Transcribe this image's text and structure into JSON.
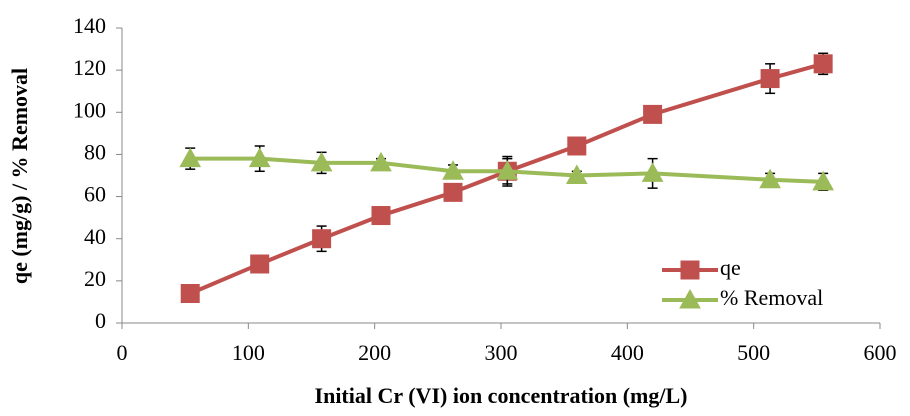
{
  "chart_data": {
    "type": "line",
    "x_label": "Initial Cr (VI) ion concentration (mg/L)",
    "y_label": "qe (mg/g) / % Removal",
    "x": [
      54,
      109,
      158,
      205,
      262,
      305,
      360,
      420,
      513,
      555
    ],
    "series": [
      {
        "name": "qe",
        "color": "#c0504d",
        "marker": "square",
        "values": [
          14,
          28,
          40,
          51,
          62,
          72,
          84,
          99,
          116,
          123
        ],
        "errors": [
          1,
          2,
          6,
          2,
          2,
          6,
          3,
          2,
          7,
          5
        ]
      },
      {
        "name": "% Removal",
        "color": "#9bbb59",
        "marker": "triangle",
        "values": [
          78,
          78,
          76,
          76,
          72,
          72,
          70,
          71,
          68,
          67
        ],
        "errors": [
          5,
          6,
          5,
          2,
          3,
          7,
          2,
          7,
          3,
          4
        ]
      }
    ],
    "xlim": [
      0,
      600
    ],
    "xticks": [
      0,
      100,
      200,
      300,
      400,
      500,
      600
    ],
    "ylim": [
      0,
      140
    ],
    "yticks": [
      0,
      20,
      40,
      60,
      80,
      100,
      120,
      140
    ],
    "legend": "lower right",
    "grid": false
  }
}
